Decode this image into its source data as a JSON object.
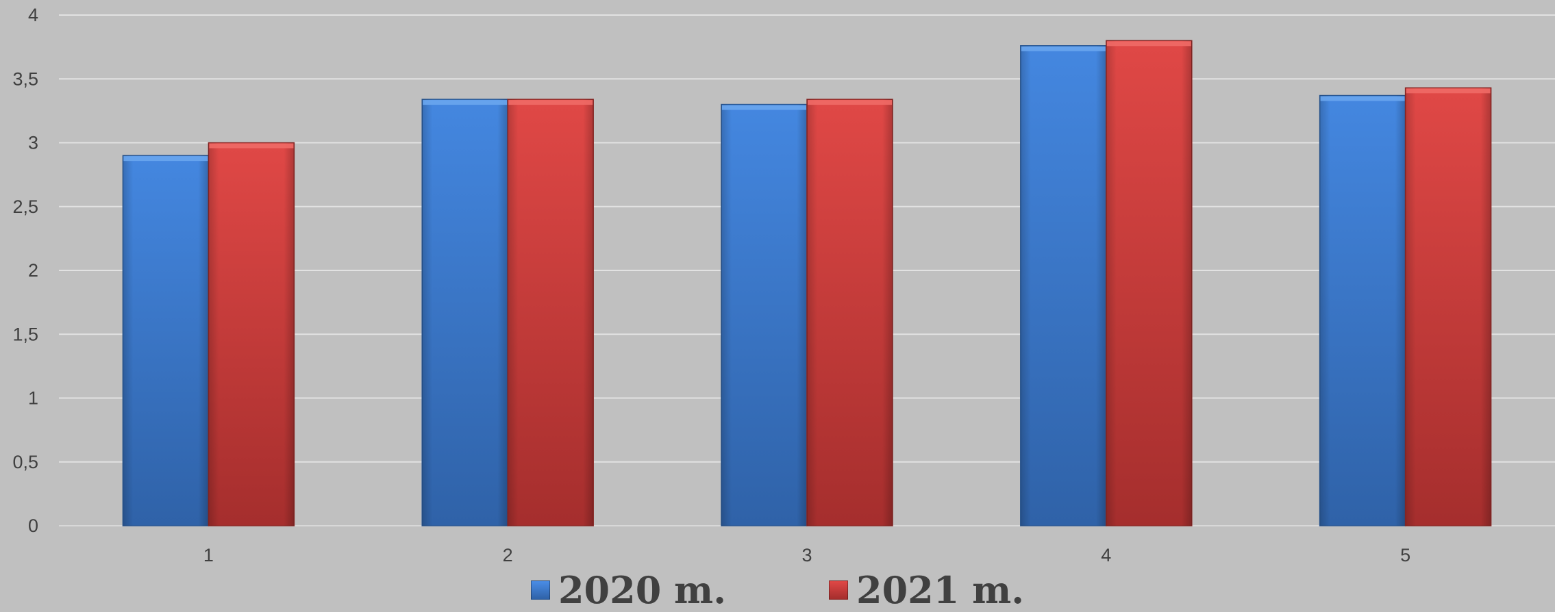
{
  "chart_data": {
    "type": "bar",
    "categories": [
      "1",
      "2",
      "3",
      "4",
      "5"
    ],
    "series": [
      {
        "name": "2020 m.",
        "color": "#3a7bd5",
        "values": [
          2.9,
          3.34,
          3.3,
          3.76,
          3.37
        ]
      },
      {
        "name": "2021 m.",
        "color": "#d13b39",
        "values": [
          3.0,
          3.34,
          3.34,
          3.8,
          3.43
        ]
      }
    ],
    "ylim": [
      0,
      4
    ],
    "yticks": [
      "0",
      "0,5",
      "1",
      "1,5",
      "2",
      "2,5",
      "3",
      "3,5",
      "4"
    ],
    "grid": true,
    "legend_position": "bottom"
  },
  "legend": {
    "items": [
      {
        "label": "2020 m.",
        "color": "#3a7bd5"
      },
      {
        "label": "2021 m.",
        "color": "#d13b39"
      }
    ]
  }
}
